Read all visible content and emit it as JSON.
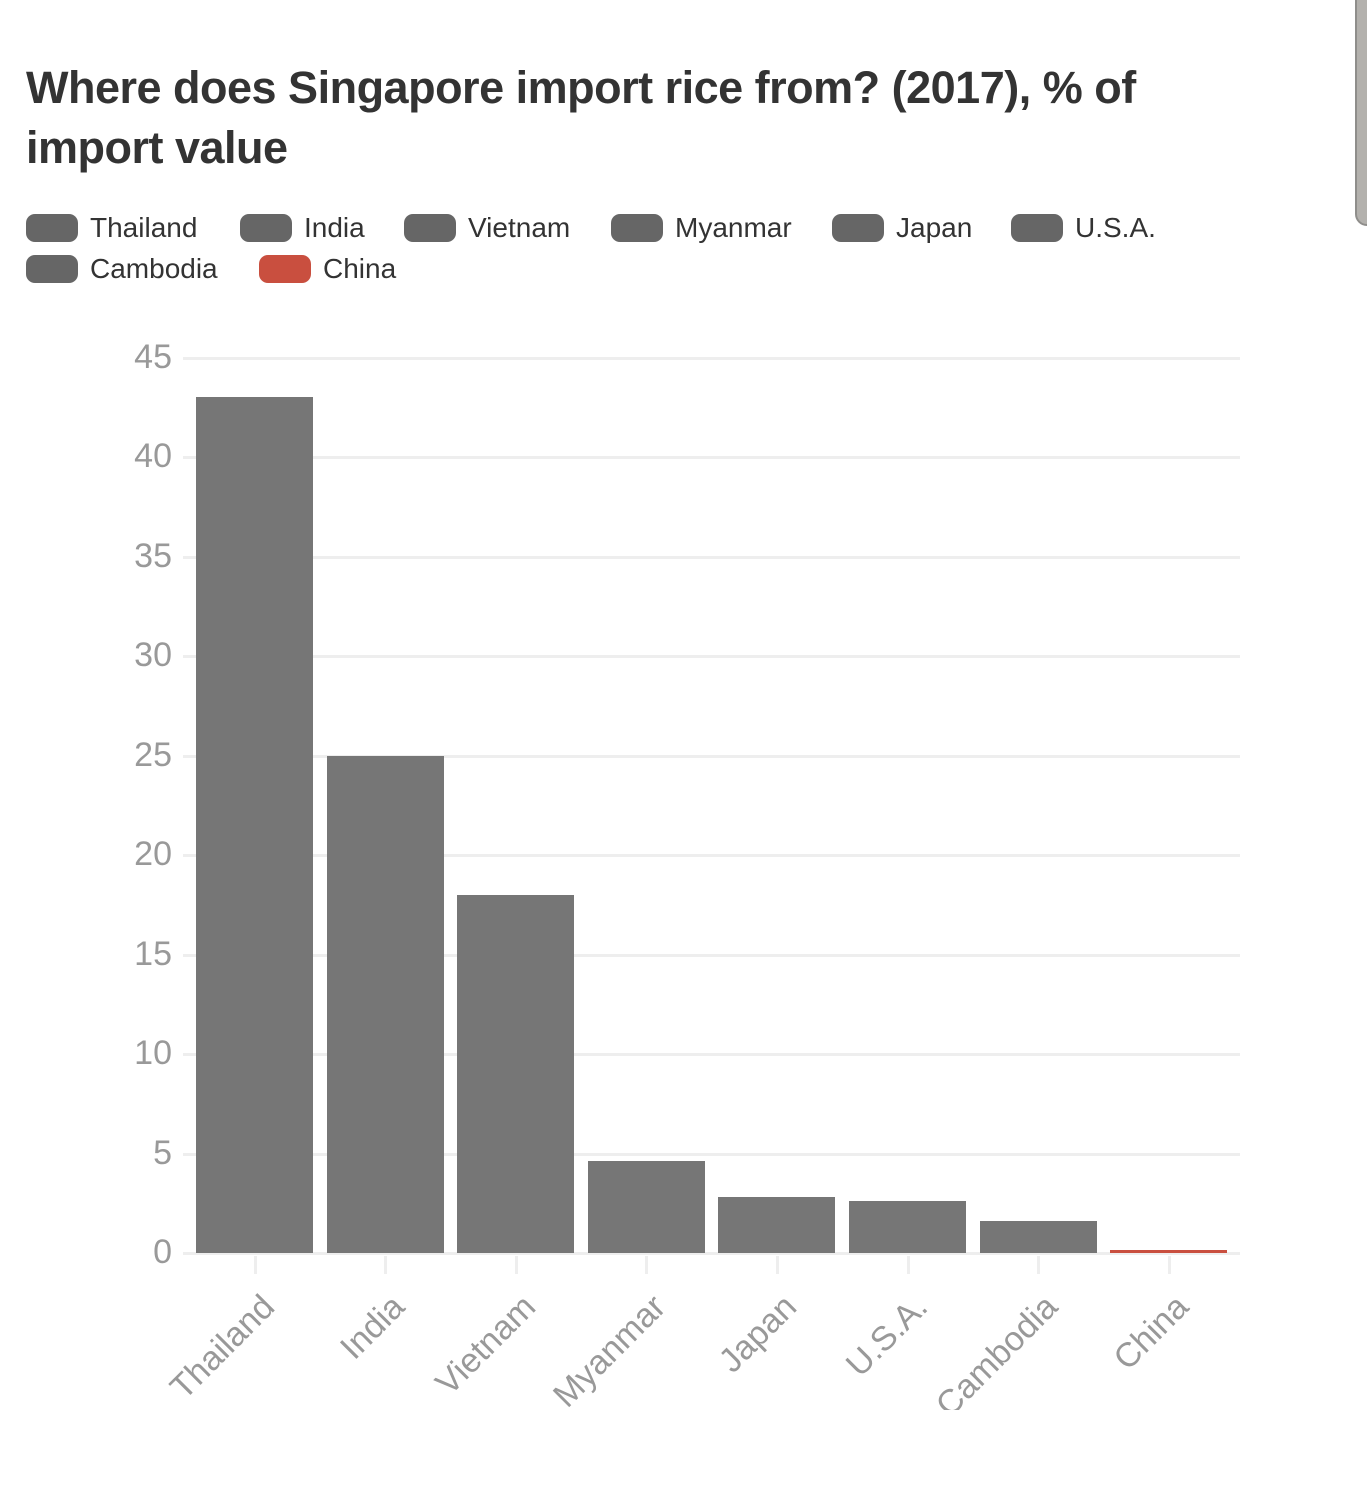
{
  "title": "Where does Singapore import rice from? (2017), % of import value",
  "title_lines": [
    "Where does Singapore import rice from? (2017), % of",
    "import value"
  ],
  "colors": {
    "default": "#666666",
    "bar": "#767676",
    "highlight": "#c94f3f",
    "grid": "#eeeeee",
    "axis_text": "#999999",
    "title": "#333333"
  },
  "legend": [
    {
      "label": "Thailand",
      "color": "#666666"
    },
    {
      "label": "India",
      "color": "#666666"
    },
    {
      "label": "Vietnam",
      "color": "#666666"
    },
    {
      "label": "Myanmar",
      "color": "#666666"
    },
    {
      "label": "Japan",
      "color": "#666666"
    },
    {
      "label": "U.S.A.",
      "color": "#666666"
    },
    {
      "label": "Cambodia",
      "color": "#666666"
    },
    {
      "label": "China",
      "color": "#c94f3f"
    }
  ],
  "chart_data": {
    "type": "bar",
    "title": "Where does Singapore import rice from? (2017), % of import value",
    "categories": [
      "Thailand",
      "India",
      "Vietnam",
      "Myanmar",
      "Japan",
      "U.S.A.",
      "Cambodia",
      "China"
    ],
    "values": [
      43.0,
      25.0,
      18.0,
      4.6,
      2.8,
      2.6,
      1.6,
      0.1
    ],
    "colors": [
      "#767676",
      "#767676",
      "#767676",
      "#767676",
      "#767676",
      "#767676",
      "#767676",
      "#c94f3f"
    ],
    "xlabel": "",
    "ylabel": "",
    "ylim": [
      0,
      45
    ],
    "yticks": [
      0,
      5,
      10,
      15,
      20,
      25,
      30,
      35,
      40,
      45
    ],
    "grid": true,
    "legend_position": "top"
  }
}
